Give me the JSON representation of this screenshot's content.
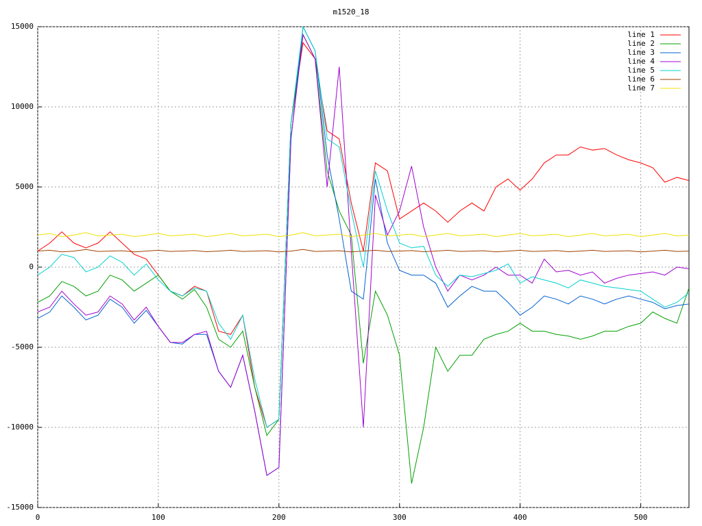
{
  "chart_data": {
    "type": "line",
    "title": "m1520_18",
    "x": [
      0,
      10,
      20,
      30,
      40,
      50,
      60,
      70,
      80,
      90,
      100,
      110,
      120,
      130,
      140,
      150,
      160,
      170,
      180,
      190,
      200,
      210,
      220,
      230,
      240,
      250,
      260,
      270,
      280,
      290,
      300,
      310,
      320,
      330,
      340,
      350,
      360,
      370,
      380,
      390,
      400,
      410,
      420,
      430,
      440,
      450,
      460,
      470,
      480,
      490,
      500,
      510,
      520,
      530,
      540
    ],
    "series": [
      {
        "name": "line 1",
        "color": "#ff0000",
        "values": [
          1000,
          1500,
          2200,
          1500,
          1200,
          1500,
          2200,
          1500,
          800,
          500,
          -500,
          -1500,
          -1800,
          -1200,
          -1500,
          -4000,
          -4200,
          -3000,
          -7500,
          -10000,
          -9500,
          9000,
          14000,
          13000,
          8500,
          8000,
          4000,
          1000,
          6500,
          6000,
          3000,
          3500,
          4000,
          3500,
          2800,
          3500,
          4000,
          3500,
          5000,
          5500,
          4800,
          5500,
          6500,
          7000,
          7000,
          7500,
          7300,
          7400,
          7000,
          6700,
          6500,
          6200,
          5300,
          5600,
          5400
        ]
      },
      {
        "name": "line 2",
        "color": "#00a000",
        "values": [
          -2200,
          -1800,
          -900,
          -1200,
          -1800,
          -1500,
          -500,
          -800,
          -1500,
          -1000,
          -500,
          -1500,
          -2000,
          -1400,
          -2500,
          -4500,
          -5000,
          -4000,
          -7500,
          -10500,
          -9500,
          9000,
          14500,
          13000,
          6000,
          3500,
          2000,
          -6000,
          -1500,
          -3000,
          -5500,
          -13500,
          -10000,
          -5000,
          -6500,
          -5500,
          -5500,
          -4500,
          -4200,
          -4000,
          -3500,
          -4000,
          -4000,
          -4200,
          -4300,
          -4500,
          -4300,
          -4000,
          -4000,
          -3700,
          -3500,
          -2800,
          -3200,
          -3500,
          -1300
        ]
      },
      {
        "name": "line 3",
        "color": "#0060d0",
        "values": [
          -3200,
          -2800,
          -1800,
          -2500,
          -3300,
          -3000,
          -2000,
          -2500,
          -3500,
          -2700,
          -3700,
          -4700,
          -4800,
          -4200,
          -4200,
          -6500,
          -7500,
          -5500,
          -9000,
          -13000,
          -12500,
          8000,
          15000,
          13500,
          7000,
          3000,
          -1500,
          -2000,
          5500,
          1500,
          -200,
          -500,
          -500,
          -1000,
          -2500,
          -1800,
          -1200,
          -1500,
          -1500,
          -2200,
          -3000,
          -2500,
          -1800,
          -2000,
          -2300,
          -1800,
          -2000,
          -2300,
          -2000,
          -1800,
          -2000,
          -2200,
          -2600,
          -2400,
          -2300
        ]
      },
      {
        "name": "line 4",
        "color": "#a000d0",
        "values": [
          -2800,
          -2500,
          -1500,
          -2300,
          -3000,
          -2800,
          -1800,
          -2300,
          -3300,
          -2500,
          -3700,
          -4700,
          -4700,
          -4200,
          -4000,
          -6500,
          -7500,
          -5500,
          -9000,
          -13000,
          -12500,
          8000,
          14500,
          13000,
          5000,
          12500,
          1000,
          -10000,
          4500,
          2000,
          3500,
          6300,
          2500,
          0,
          -1500,
          -500,
          -800,
          -500,
          0,
          -500,
          -500,
          -1000,
          500,
          -300,
          -200,
          -500,
          -300,
          -1000,
          -700,
          -500,
          -400,
          -300,
          -500,
          0,
          -100
        ]
      },
      {
        "name": "line 5",
        "color": "#00d0d0",
        "values": [
          -500,
          0,
          800,
          600,
          -300,
          0,
          700,
          300,
          -500,
          200,
          -800,
          -1500,
          -1800,
          -1300,
          -1500,
          -3500,
          -4500,
          -3000,
          -7000,
          -10000,
          -9500,
          9000,
          15000,
          13500,
          8000,
          7500,
          3500,
          0,
          6000,
          3500,
          1500,
          1200,
          1300,
          -500,
          -1200,
          -500,
          -600,
          -400,
          -200,
          200,
          -1000,
          -600,
          -800,
          -1000,
          -1300,
          -800,
          -1000,
          -1200,
          -1300,
          -1400,
          -1500,
          -2000,
          -2500,
          -2200,
          -1600
        ]
      },
      {
        "name": "line 6",
        "color": "#a04000",
        "values": [
          1000,
          1050,
          950,
          1000,
          1100,
          980,
          1000,
          1020,
          950,
          1000,
          1050,
          980,
          1000,
          1030,
          960,
          1000,
          1050,
          980,
          1000,
          1020,
          950,
          1000,
          1100,
          980,
          1000,
          1020,
          950,
          1000,
          1050,
          980,
          1000,
          1030,
          960,
          1000,
          1050,
          980,
          1000,
          1020,
          950,
          1000,
          1050,
          980,
          1000,
          1030,
          960,
          1000,
          1050,
          980,
          1000,
          1020,
          950,
          1000,
          1050,
          980,
          1000
        ]
      },
      {
        "name": "line 7",
        "color": "#f0e000",
        "values": [
          2000,
          2100,
          1900,
          2000,
          2150,
          1950,
          2000,
          2050,
          1900,
          2000,
          2100,
          1950,
          2000,
          2050,
          1900,
          2000,
          2100,
          1950,
          2000,
          2050,
          1900,
          2000,
          2150,
          1950,
          2000,
          2050,
          1900,
          2000,
          2100,
          1950,
          2000,
          2050,
          1900,
          2000,
          2100,
          1950,
          2000,
          2050,
          1900,
          2000,
          2100,
          1950,
          2000,
          2050,
          1900,
          2000,
          2100,
          1950,
          2000,
          2050,
          1900,
          2000,
          2100,
          1950,
          2000
        ]
      }
    ],
    "xlim": [
      0,
      540
    ],
    "xticks": [
      0,
      100,
      200,
      300,
      400,
      500
    ],
    "ylim": [
      -15000,
      15000
    ],
    "yticks": [
      -15000,
      -10000,
      -5000,
      0,
      5000,
      10000,
      15000
    ],
    "grid": true,
    "legend": "top-right"
  }
}
